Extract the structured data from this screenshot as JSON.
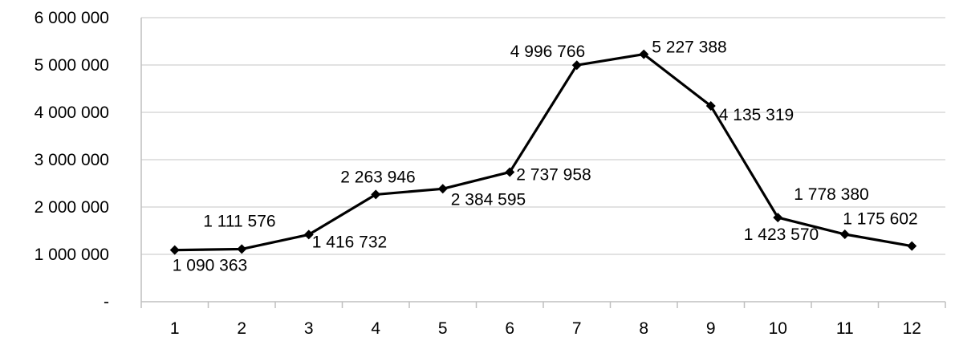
{
  "chart_data": {
    "type": "line",
    "title": "",
    "xlabel": "",
    "ylabel": "",
    "categories": [
      "1",
      "2",
      "3",
      "4",
      "5",
      "6",
      "7",
      "8",
      "9",
      "10",
      "11",
      "12"
    ],
    "series": [
      {
        "values": [
          1090363,
          1111576,
          1416732,
          2263946,
          2384595,
          2737958,
          4996766,
          5227388,
          4135319,
          1778380,
          1423570,
          1175602
        ]
      }
    ],
    "data_labels": [
      "1 090 363",
      "1 111 576",
      "1 416 732",
      "2 263 946",
      "2 384 595",
      "2 737 958",
      "4 996 766",
      "5 227 388",
      "4 135 319",
      "1 778 380",
      "1 423 570",
      "1 175 602"
    ],
    "y_tick_labels": [
      "-",
      "1 000 000",
      "2 000 000",
      "3 000 000",
      "4 000 000",
      "5 000 000",
      "6 000 000"
    ],
    "ylim": [
      0,
      6000000
    ],
    "grid": true,
    "legend": "none",
    "marker": "diamond",
    "colors": {
      "line": "#000000",
      "grid": "#d9d9d9",
      "axis": "#bfbfbf"
    }
  }
}
